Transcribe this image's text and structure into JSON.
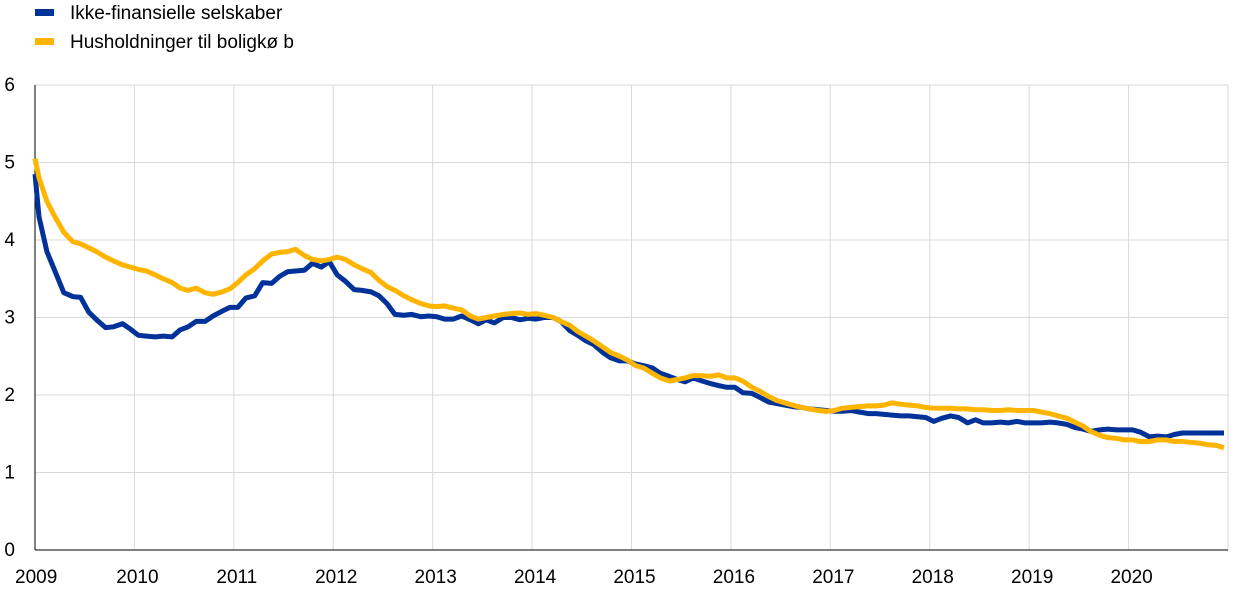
{
  "colors": {
    "series_1": "#003299",
    "series_2": "#ffb400",
    "grid": "#d9d9d9",
    "axis": "#000000"
  },
  "chart_data": {
    "type": "line",
    "title": "",
    "xlabel": "",
    "ylabel": "",
    "xlim": [
      2009.0,
      2021.0
    ],
    "ylim": [
      0,
      6
    ],
    "grid": true,
    "legend_position": "top-left",
    "x_ticks": [
      "2009",
      "2010",
      "2011",
      "2012",
      "2013",
      "2014",
      "2015",
      "2016",
      "2017",
      "2018",
      "2019",
      "2020"
    ],
    "y_ticks": [
      "0",
      "1",
      "2",
      "3",
      "4",
      "5",
      "6"
    ],
    "series": [
      {
        "name": "Ikke-finansielle selskaber",
        "x": [
          2009.0,
          2009.04,
          2009.12,
          2009.2,
          2009.29,
          2009.38,
          2009.46,
          2009.54,
          2009.62,
          2009.71,
          2009.79,
          2009.88,
          2009.96,
          2010.04,
          2010.12,
          2010.21,
          2010.29,
          2010.38,
          2010.46,
          2010.54,
          2010.62,
          2010.71,
          2010.79,
          2010.88,
          2010.96,
          2011.04,
          2011.12,
          2011.21,
          2011.29,
          2011.38,
          2011.46,
          2011.54,
          2011.62,
          2011.71,
          2011.79,
          2011.88,
          2011.96,
          2012.04,
          2012.12,
          2012.21,
          2012.29,
          2012.38,
          2012.46,
          2012.54,
          2012.62,
          2012.71,
          2012.79,
          2012.88,
          2012.96,
          2013.04,
          2013.12,
          2013.21,
          2013.29,
          2013.38,
          2013.46,
          2013.54,
          2013.62,
          2013.71,
          2013.79,
          2013.88,
          2013.96,
          2014.04,
          2014.12,
          2014.21,
          2014.29,
          2014.38,
          2014.46,
          2014.54,
          2014.62,
          2014.71,
          2014.79,
          2014.88,
          2014.96,
          2015.04,
          2015.12,
          2015.21,
          2015.29,
          2015.38,
          2015.46,
          2015.54,
          2015.62,
          2015.71,
          2015.79,
          2015.88,
          2015.96,
          2016.04,
          2016.12,
          2016.21,
          2016.29,
          2016.38,
          2016.46,
          2016.54,
          2016.62,
          2016.71,
          2016.79,
          2016.88,
          2016.96,
          2017.04,
          2017.12,
          2017.21,
          2017.29,
          2017.38,
          2017.46,
          2017.54,
          2017.62,
          2017.71,
          2017.79,
          2017.88,
          2017.96,
          2018.04,
          2018.12,
          2018.21,
          2018.29,
          2018.38,
          2018.46,
          2018.54,
          2018.62,
          2018.71,
          2018.79,
          2018.88,
          2018.96,
          2019.04,
          2019.12,
          2019.21,
          2019.29,
          2019.38,
          2019.46,
          2019.54,
          2019.62,
          2019.71,
          2019.79,
          2019.88,
          2019.96,
          2020.04,
          2020.12,
          2020.21,
          2020.29,
          2020.38,
          2020.46,
          2020.54,
          2020.62,
          2020.71,
          2020.79,
          2020.88,
          2020.96
        ],
        "values": [
          4.85,
          4.3,
          3.85,
          3.6,
          3.32,
          3.27,
          3.26,
          3.07,
          2.97,
          2.87,
          2.88,
          2.92,
          2.85,
          2.77,
          2.76,
          2.75,
          2.76,
          2.75,
          2.84,
          2.88,
          2.95,
          2.95,
          3.02,
          3.08,
          3.13,
          3.13,
          3.25,
          3.28,
          3.45,
          3.44,
          3.53,
          3.59,
          3.6,
          3.61,
          3.7,
          3.65,
          3.72,
          3.55,
          3.47,
          3.36,
          3.35,
          3.33,
          3.28,
          3.18,
          3.04,
          3.03,
          3.04,
          3.01,
          3.02,
          3.01,
          2.98,
          2.98,
          3.02,
          2.97,
          2.92,
          2.97,
          2.93,
          3.0,
          3.0,
          2.97,
          2.99,
          2.98,
          3.0,
          3.0,
          2.95,
          2.83,
          2.77,
          2.7,
          2.65,
          2.55,
          2.48,
          2.44,
          2.44,
          2.4,
          2.38,
          2.35,
          2.28,
          2.24,
          2.2,
          2.17,
          2.22,
          2.18,
          2.15,
          2.12,
          2.1,
          2.1,
          2.03,
          2.02,
          1.97,
          1.91,
          1.89,
          1.87,
          1.85,
          1.84,
          1.82,
          1.81,
          1.8,
          1.79,
          1.79,
          1.8,
          1.78,
          1.76,
          1.76,
          1.75,
          1.74,
          1.73,
          1.73,
          1.72,
          1.71,
          1.66,
          1.7,
          1.73,
          1.71,
          1.64,
          1.68,
          1.64,
          1.64,
          1.65,
          1.64,
          1.66,
          1.64,
          1.64,
          1.64,
          1.65,
          1.64,
          1.62,
          1.58,
          1.56,
          1.53,
          1.55,
          1.56,
          1.55,
          1.55,
          1.55,
          1.52,
          1.46,
          1.47,
          1.46,
          1.49,
          1.51,
          1.51,
          1.51,
          1.51,
          1.51,
          1.51
        ]
      },
      {
        "name": "Husholdninger til boligkø b",
        "x": [
          2009.0,
          2009.04,
          2009.12,
          2009.2,
          2009.29,
          2009.38,
          2009.46,
          2009.54,
          2009.62,
          2009.71,
          2009.79,
          2009.88,
          2009.96,
          2010.04,
          2010.12,
          2010.21,
          2010.29,
          2010.38,
          2010.46,
          2010.54,
          2010.62,
          2010.71,
          2010.79,
          2010.88,
          2010.96,
          2011.04,
          2011.12,
          2011.21,
          2011.29,
          2011.38,
          2011.46,
          2011.54,
          2011.62,
          2011.71,
          2011.79,
          2011.88,
          2011.96,
          2012.04,
          2012.12,
          2012.21,
          2012.29,
          2012.38,
          2012.46,
          2012.54,
          2012.62,
          2012.71,
          2012.79,
          2012.88,
          2012.96,
          2013.04,
          2013.12,
          2013.21,
          2013.29,
          2013.38,
          2013.46,
          2013.54,
          2013.62,
          2013.71,
          2013.79,
          2013.88,
          2013.96,
          2014.04,
          2014.12,
          2014.21,
          2014.29,
          2014.38,
          2014.46,
          2014.54,
          2014.62,
          2014.71,
          2014.79,
          2014.88,
          2014.96,
          2015.04,
          2015.12,
          2015.21,
          2015.29,
          2015.38,
          2015.46,
          2015.54,
          2015.62,
          2015.71,
          2015.79,
          2015.88,
          2015.96,
          2016.04,
          2016.12,
          2016.21,
          2016.29,
          2016.38,
          2016.46,
          2016.54,
          2016.62,
          2016.71,
          2016.79,
          2016.88,
          2016.96,
          2017.04,
          2017.12,
          2017.21,
          2017.29,
          2017.38,
          2017.46,
          2017.54,
          2017.62,
          2017.71,
          2017.79,
          2017.88,
          2017.96,
          2018.04,
          2018.12,
          2018.21,
          2018.29,
          2018.38,
          2018.46,
          2018.54,
          2018.62,
          2018.71,
          2018.79,
          2018.88,
          2018.96,
          2019.04,
          2019.12,
          2019.21,
          2019.29,
          2019.38,
          2019.46,
          2019.54,
          2019.62,
          2019.71,
          2019.79,
          2019.88,
          2019.96,
          2020.04,
          2020.12,
          2020.21,
          2020.29,
          2020.38,
          2020.46,
          2020.54,
          2020.62,
          2020.71,
          2020.79,
          2020.88,
          2020.96
        ],
        "values": [
          5.05,
          4.8,
          4.5,
          4.3,
          4.1,
          3.98,
          3.95,
          3.9,
          3.85,
          3.78,
          3.73,
          3.68,
          3.65,
          3.62,
          3.6,
          3.55,
          3.5,
          3.45,
          3.38,
          3.35,
          3.38,
          3.32,
          3.3,
          3.33,
          3.37,
          3.45,
          3.55,
          3.63,
          3.73,
          3.82,
          3.84,
          3.85,
          3.88,
          3.8,
          3.75,
          3.73,
          3.75,
          3.78,
          3.75,
          3.68,
          3.63,
          3.58,
          3.48,
          3.4,
          3.35,
          3.28,
          3.23,
          3.18,
          3.15,
          3.14,
          3.15,
          3.12,
          3.1,
          3.02,
          2.98,
          3.0,
          3.02,
          3.04,
          3.05,
          3.06,
          3.04,
          3.05,
          3.03,
          3.0,
          2.95,
          2.9,
          2.82,
          2.76,
          2.7,
          2.62,
          2.55,
          2.5,
          2.45,
          2.38,
          2.35,
          2.28,
          2.22,
          2.18,
          2.2,
          2.22,
          2.25,
          2.25,
          2.24,
          2.26,
          2.22,
          2.22,
          2.18,
          2.1,
          2.05,
          1.98,
          1.93,
          1.9,
          1.87,
          1.84,
          1.82,
          1.8,
          1.79,
          1.8,
          1.83,
          1.84,
          1.85,
          1.86,
          1.86,
          1.87,
          1.9,
          1.88,
          1.87,
          1.86,
          1.84,
          1.83,
          1.83,
          1.83,
          1.82,
          1.82,
          1.81,
          1.81,
          1.8,
          1.8,
          1.81,
          1.8,
          1.8,
          1.8,
          1.78,
          1.76,
          1.73,
          1.7,
          1.65,
          1.6,
          1.53,
          1.48,
          1.45,
          1.44,
          1.42,
          1.42,
          1.4,
          1.4,
          1.42,
          1.42,
          1.4,
          1.4,
          1.39,
          1.38,
          1.36,
          1.35,
          1.32
        ]
      }
    ]
  }
}
